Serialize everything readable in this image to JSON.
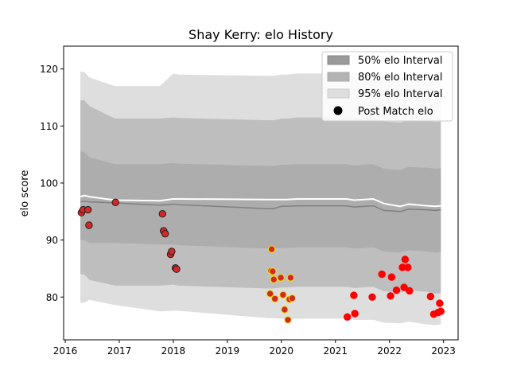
{
  "chart_data": {
    "type": "scatter",
    "title": "Shay Kerry: elo History",
    "xlabel": "",
    "ylabel": "elo score",
    "xlim": [
      2015.97,
      2023.27
    ],
    "ylim": [
      72.5,
      124
    ],
    "x_ticks": [
      "2016",
      "2017",
      "2018",
      "2019",
      "2020",
      "2021",
      "2022",
      "2023"
    ],
    "y_ticks": [
      "80",
      "90",
      "100",
      "110",
      "120"
    ],
    "grid": false,
    "legend": {
      "placement": "top-right",
      "entries": [
        "50% elo Interval",
        "80% elo Interval",
        "95% elo Interval",
        "Post Match elo"
      ]
    },
    "colors": {
      "band_50": "#9a9a9a",
      "band_80": "#b3b3b3",
      "band_95": "#dedede",
      "mean_line": "#808080",
      "upper_line": "#ffffff",
      "marker_2016_2018": "#d62728",
      "marker_2016_2018_edge": "#1f1f1f",
      "marker_2019_2020": "#d62728",
      "marker_2019_2020_edge": "#e8e800",
      "marker_2021_2022": "#ff0000",
      "marker_2021_2022_edge": "#ff0000"
    },
    "bands": {
      "x": [
        2016.28,
        2016.35,
        2016.45,
        2016.92,
        2017.75,
        2018.0,
        2018.1,
        2019.75,
        2019.85,
        2020.0,
        2020.1,
        2020.3,
        2021.2,
        2021.35,
        2021.7,
        2021.9,
        2022.2,
        2022.35,
        2022.7,
        2022.85,
        2022.95
      ],
      "mean": [
        96.7,
        96.8,
        96.7,
        96.5,
        96.1,
        96.3,
        96.2,
        95.5,
        95.5,
        95.9,
        95.9,
        96.0,
        96.0,
        95.8,
        96.0,
        95.2,
        95.0,
        95.4,
        95.3,
        95.2,
        95.3
      ],
      "hi50": [
        105.5,
        105.5,
        104.5,
        103.3,
        103.3,
        103.5,
        103.4,
        103.0,
        103.0,
        103.2,
        103.2,
        103.3,
        103.3,
        103.1,
        103.3,
        102.5,
        102.3,
        102.8,
        102.7,
        102.5,
        102.6
      ],
      "lo50": [
        90.0,
        90.0,
        89.5,
        89.5,
        89.2,
        89.2,
        89.1,
        88.5,
        88.5,
        88.6,
        88.6,
        88.7,
        88.7,
        88.5,
        88.7,
        88.0,
        87.8,
        88.2,
        88.0,
        87.8,
        87.9
      ],
      "hi80": [
        114.5,
        114.5,
        113.5,
        111.3,
        111.3,
        111.5,
        111.4,
        111.0,
        111.0,
        111.3,
        111.3,
        111.5,
        111.5,
        111.3,
        111.5,
        110.8,
        110.6,
        111.0,
        110.9,
        110.7,
        110.8
      ],
      "lo80": [
        84.0,
        84.0,
        83.0,
        82.0,
        82.0,
        82.2,
        82.0,
        81.5,
        81.5,
        81.7,
        81.7,
        81.8,
        81.8,
        81.6,
        81.8,
        81.0,
        80.8,
        81.2,
        80.9,
        80.6,
        80.7
      ],
      "hi95": [
        119.5,
        119.5,
        118.5,
        117.0,
        117.0,
        119.2,
        119.0,
        118.8,
        118.8,
        119.0,
        119.0,
        119.2,
        119.2,
        119.0,
        119.2,
        118.5,
        118.3,
        118.7,
        118.5,
        118.3,
        118.4
      ],
      "lo95": [
        79.0,
        79.0,
        79.5,
        78.6,
        77.5,
        77.6,
        77.6,
        76.3,
        76.3,
        76.2,
        76.2,
        76.2,
        76.2,
        76.0,
        76.0,
        75.5,
        75.4,
        75.7,
        75.2,
        75.1,
        75.2
      ],
      "upper": [
        97.6,
        97.8,
        97.6,
        97.0,
        96.9,
        97.2,
        97.2,
        97.1,
        97.1,
        97.1,
        97.1,
        97.2,
        97.2,
        97.0,
        97.2,
        96.4,
        95.9,
        96.3,
        96.0,
        95.9,
        96.0
      ]
    },
    "points": [
      {
        "x": 2016.3,
        "y": 94.8,
        "group": "a"
      },
      {
        "x": 2016.33,
        "y": 95.3,
        "group": "a"
      },
      {
        "x": 2016.42,
        "y": 95.3,
        "group": "a"
      },
      {
        "x": 2016.44,
        "y": 92.6,
        "group": "a"
      },
      {
        "x": 2016.93,
        "y": 96.6,
        "group": "a"
      },
      {
        "x": 2017.8,
        "y": 94.6,
        "group": "a"
      },
      {
        "x": 2017.82,
        "y": 91.6,
        "group": "a"
      },
      {
        "x": 2017.85,
        "y": 91.1,
        "group": "a"
      },
      {
        "x": 2017.95,
        "y": 87.5,
        "group": "a"
      },
      {
        "x": 2017.97,
        "y": 88.0,
        "group": "a"
      },
      {
        "x": 2018.04,
        "y": 85.1,
        "group": "a"
      },
      {
        "x": 2018.06,
        "y": 84.9,
        "group": "a"
      },
      {
        "x": 2019.79,
        "y": 80.6,
        "group": "b"
      },
      {
        "x": 2019.81,
        "y": 84.6,
        "group": "b"
      },
      {
        "x": 2019.82,
        "y": 88.4,
        "group": "b"
      },
      {
        "x": 2019.84,
        "y": 84.5,
        "group": "b"
      },
      {
        "x": 2019.86,
        "y": 83.1,
        "group": "b"
      },
      {
        "x": 2019.88,
        "y": 79.7,
        "group": "b"
      },
      {
        "x": 2019.99,
        "y": 83.4,
        "group": "b"
      },
      {
        "x": 2020.03,
        "y": 80.4,
        "group": "b"
      },
      {
        "x": 2020.06,
        "y": 77.8,
        "group": "b"
      },
      {
        "x": 2020.12,
        "y": 76.0,
        "group": "b"
      },
      {
        "x": 2020.15,
        "y": 79.6,
        "group": "b"
      },
      {
        "x": 2020.17,
        "y": 83.4,
        "group": "b"
      },
      {
        "x": 2020.2,
        "y": 79.8,
        "group": "b"
      },
      {
        "x": 2021.22,
        "y": 76.5,
        "group": "c"
      },
      {
        "x": 2021.34,
        "y": 80.3,
        "group": "c"
      },
      {
        "x": 2021.36,
        "y": 77.1,
        "group": "c"
      },
      {
        "x": 2021.68,
        "y": 80.0,
        "group": "c"
      },
      {
        "x": 2021.86,
        "y": 84.0,
        "group": "c"
      },
      {
        "x": 2022.02,
        "y": 80.2,
        "group": "c"
      },
      {
        "x": 2022.04,
        "y": 83.5,
        "group": "c"
      },
      {
        "x": 2022.13,
        "y": 81.2,
        "group": "c"
      },
      {
        "x": 2022.24,
        "y": 85.2,
        "group": "c"
      },
      {
        "x": 2022.27,
        "y": 81.7,
        "group": "c"
      },
      {
        "x": 2022.29,
        "y": 86.6,
        "group": "c"
      },
      {
        "x": 2022.34,
        "y": 85.2,
        "group": "c"
      },
      {
        "x": 2022.37,
        "y": 81.1,
        "group": "c"
      },
      {
        "x": 2022.76,
        "y": 80.1,
        "group": "c"
      },
      {
        "x": 2022.82,
        "y": 77.0,
        "group": "c"
      },
      {
        "x": 2022.9,
        "y": 77.3,
        "group": "c"
      },
      {
        "x": 2022.93,
        "y": 78.9,
        "group": "c"
      },
      {
        "x": 2022.95,
        "y": 77.5,
        "group": "c"
      }
    ]
  }
}
